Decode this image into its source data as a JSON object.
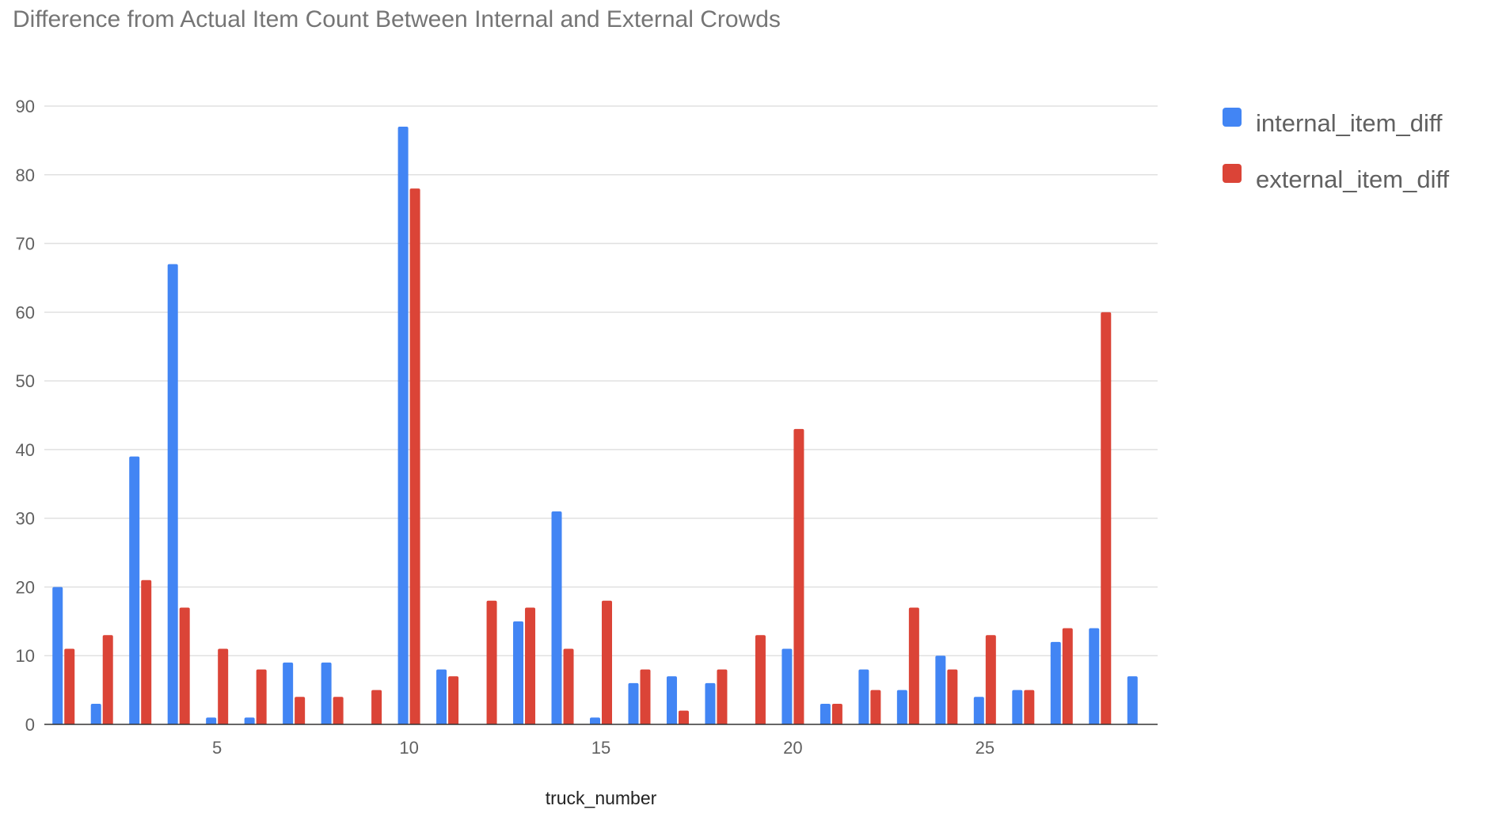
{
  "chart_data": {
    "type": "bar",
    "title": "Difference from Actual Item Count Between Internal and External Crowds",
    "xlabel": "truck_number",
    "ylabel": "",
    "categories": [
      1,
      2,
      3,
      4,
      5,
      6,
      7,
      8,
      9,
      10,
      11,
      12,
      13,
      14,
      15,
      16,
      17,
      18,
      19,
      20,
      21,
      22,
      23,
      24,
      25,
      26,
      27,
      28,
      29
    ],
    "x_ticks": [
      5,
      10,
      15,
      20,
      25
    ],
    "y_ticks": [
      0,
      10,
      20,
      30,
      40,
      50,
      60,
      70,
      80,
      90
    ],
    "ylim": [
      0,
      90
    ],
    "grid": true,
    "legend_position": "right",
    "series": [
      {
        "name": "internal_item_diff",
        "color": "#4285f4",
        "values": [
          20,
          3,
          39,
          67,
          1,
          1,
          9,
          9,
          0,
          87,
          8,
          0,
          15,
          31,
          1,
          6,
          7,
          6,
          0,
          11,
          3,
          8,
          5,
          10,
          4,
          5,
          12,
          14,
          7
        ]
      },
      {
        "name": "external_item_diff",
        "color": "#db4437",
        "values": [
          11,
          13,
          21,
          17,
          11,
          8,
          4,
          4,
          5,
          78,
          7,
          18,
          17,
          11,
          18,
          8,
          2,
          8,
          13,
          43,
          3,
          5,
          17,
          8,
          13,
          5,
          14,
          60,
          0
        ]
      }
    ]
  }
}
